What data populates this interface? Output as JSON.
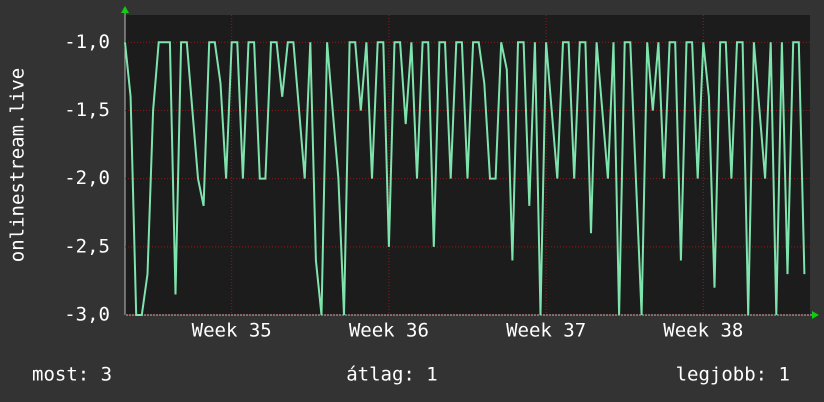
{
  "chart_data": {
    "type": "line",
    "y_label": "onlinestream.live",
    "ylim": [
      -3,
      -0.8
    ],
    "yticks": [
      {
        "value": -1,
        "label": "-1,0"
      },
      {
        "value": -1.5,
        "label": "-1,5"
      },
      {
        "value": -2,
        "label": "-2,0"
      },
      {
        "value": -2.5,
        "label": "-2,5"
      },
      {
        "value": -3,
        "label": "-3,0"
      }
    ],
    "xlim": [
      0,
      30.5
    ],
    "xticks": [
      {
        "value": 4.75,
        "label": "Week 35"
      },
      {
        "value": 11.75,
        "label": "Week 36"
      },
      {
        "value": 18.75,
        "label": "Week 37"
      },
      {
        "value": 25.75,
        "label": "Week 38"
      }
    ],
    "grid": true,
    "series": [
      {
        "color": "#7fe3ad",
        "x": [
          0,
          0.25,
          0.5,
          0.75,
          1,
          1.25,
          1.5,
          1.75,
          2,
          2.25,
          2.5,
          2.75,
          3,
          3.25,
          3.5,
          3.75,
          4,
          4.25,
          4.5,
          4.75,
          5,
          5.25,
          5.5,
          5.75,
          6,
          6.25,
          6.5,
          6.75,
          7,
          7.25,
          7.5,
          7.75,
          8,
          8.25,
          8.5,
          8.75,
          9,
          9.25,
          9.5,
          9.75,
          10,
          10.25,
          10.5,
          10.75,
          11,
          11.25,
          11.5,
          11.75,
          12,
          12.25,
          12.5,
          12.75,
          13,
          13.25,
          13.5,
          13.75,
          14,
          14.25,
          14.5,
          14.75,
          15,
          15.25,
          15.5,
          15.75,
          16,
          16.25,
          16.5,
          16.75,
          17,
          17.25,
          17.5,
          17.75,
          18,
          18.25,
          18.5,
          18.75,
          19,
          19.25,
          19.5,
          19.75,
          20,
          20.25,
          20.5,
          20.75,
          21,
          21.25,
          21.5,
          21.75,
          22,
          22.25,
          22.5,
          22.75,
          23,
          23.25,
          23.5,
          23.75,
          24,
          24.25,
          24.5,
          24.75,
          25,
          25.25,
          25.5,
          25.75,
          26,
          26.25,
          26.5,
          26.75,
          27,
          27.25,
          27.5,
          27.75,
          28,
          28.25,
          28.5,
          28.75,
          29,
          29.25,
          29.5,
          29.75,
          30,
          30.25
        ],
        "values": [
          -1,
          -1.4,
          -3,
          -3,
          -2.7,
          -1.5,
          -1,
          -1,
          -1,
          -2.85,
          -1,
          -1,
          -1.5,
          -2,
          -2.2,
          -1,
          -1,
          -1.3,
          -2,
          -1,
          -1,
          -2,
          -1,
          -1,
          -2,
          -2,
          -1,
          -1,
          -1.4,
          -1,
          -1,
          -1.5,
          -2,
          -1,
          -2.6,
          -3,
          -1,
          -1.5,
          -2,
          -3,
          -1,
          -1,
          -1.5,
          -1,
          -2,
          -1,
          -1,
          -2.5,
          -1,
          -1,
          -1.6,
          -1,
          -2,
          -1,
          -1,
          -2.5,
          -1,
          -1,
          -2,
          -1,
          -1,
          -2,
          -1,
          -1,
          -1.3,
          -2,
          -2,
          -1,
          -1.2,
          -2.6,
          -1,
          -1,
          -2.2,
          -1,
          -3,
          -1,
          -1.5,
          -2,
          -1,
          -1,
          -2,
          -1,
          -1,
          -2.4,
          -1,
          -1.5,
          -2,
          -1,
          -3,
          -1,
          -1,
          -2,
          -3,
          -1,
          -1.5,
          -1,
          -2,
          -1,
          -1,
          -2.6,
          -1,
          -1,
          -2,
          -1,
          -1.4,
          -2.8,
          -1,
          -1,
          -2,
          -1,
          -1,
          -3,
          -1,
          -1.5,
          -2,
          -1,
          -3,
          -1,
          -2.7,
          -1,
          -1,
          -2.7
        ]
      }
    ],
    "stats": [
      "most: 3",
      "átlag: 1",
      "legjobb: 1"
    ]
  }
}
